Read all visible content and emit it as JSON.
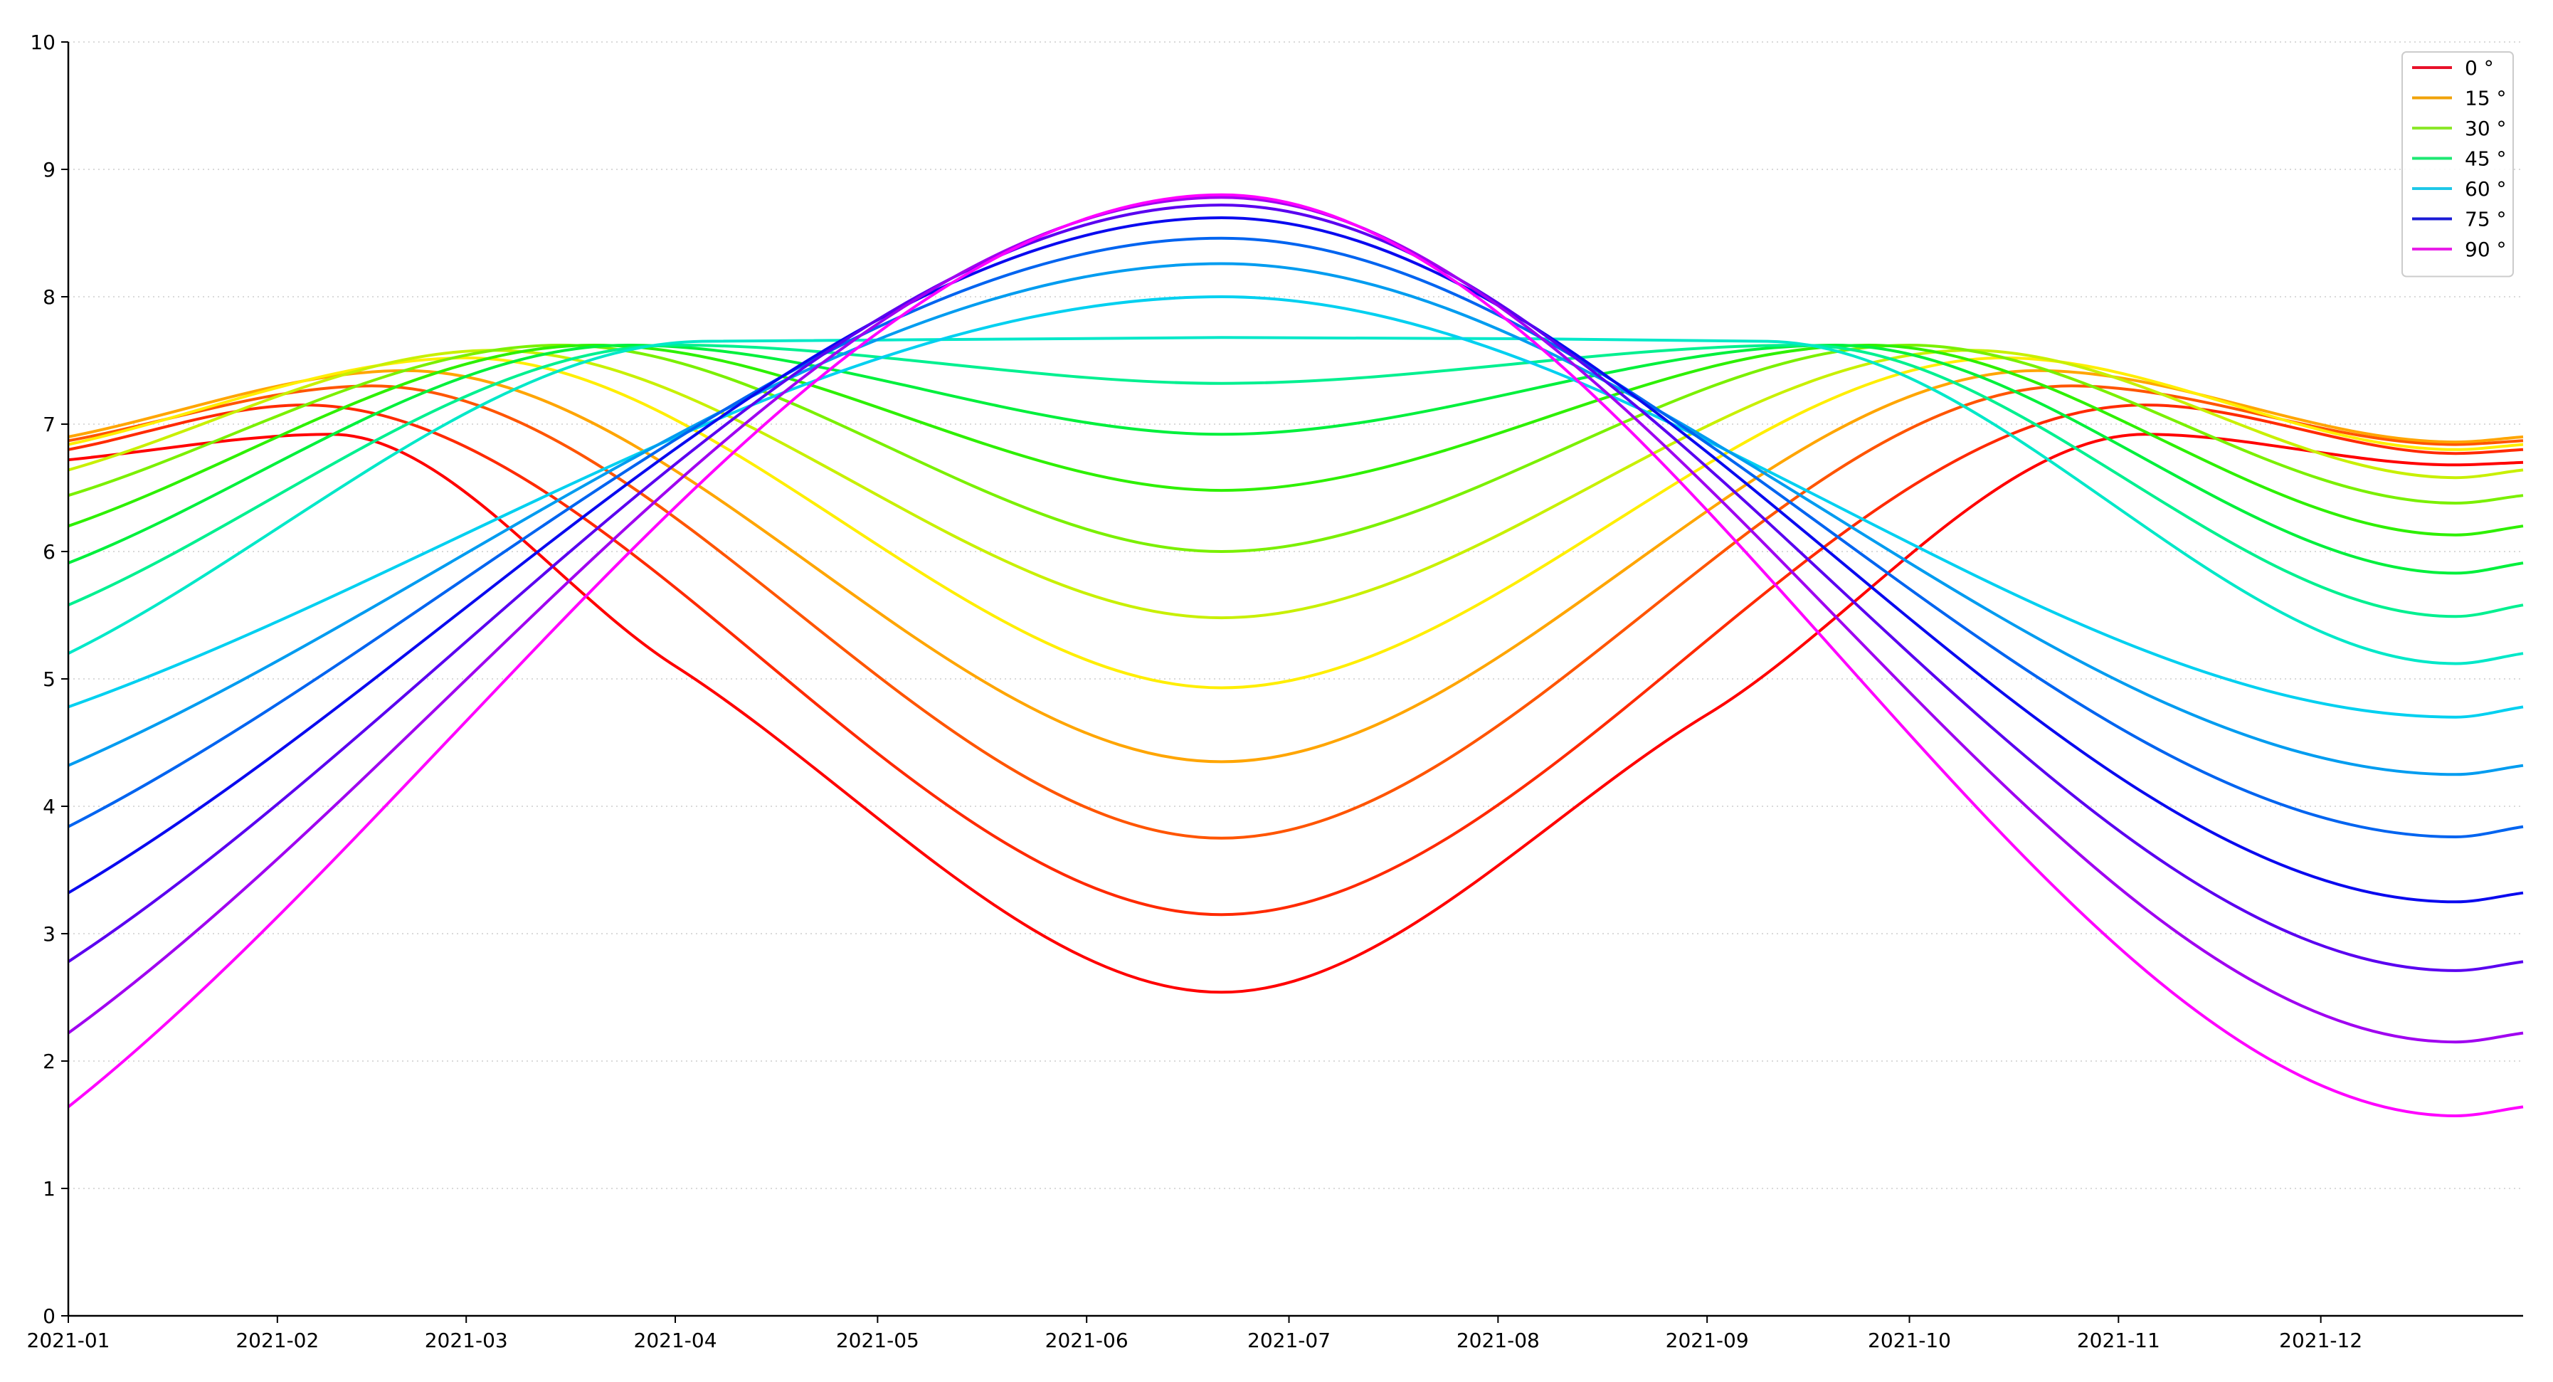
{
  "chart_data": {
    "type": "line",
    "title": "",
    "xlabel": "",
    "ylabel": "",
    "ylim": [
      0,
      10
    ],
    "xlim": [
      "2021-01-01",
      "2021-12-31"
    ],
    "x_tick_labels": [
      "2021-01",
      "2021-02",
      "2021-03",
      "2021-04",
      "2021-05",
      "2021-06",
      "2021-07",
      "2021-08",
      "2021-09",
      "2021-10",
      "2021-11",
      "2021-12"
    ],
    "y_ticks": [
      0,
      1,
      2,
      3,
      4,
      5,
      6,
      7,
      8,
      9,
      10
    ],
    "grid": "horizontal dotted",
    "legend_position": "top-right",
    "legend": [
      {
        "label": "0 °",
        "color": "#e8112a"
      },
      {
        "label": "15 °",
        "color": "#f0a30a"
      },
      {
        "label": "30 °",
        "color": "#8ce82a"
      },
      {
        "label": "45 °",
        "color": "#1ee873"
      },
      {
        "label": "60 °",
        "color": "#1ec8e8"
      },
      {
        "label": "75 °",
        "color": "#1a1ad6"
      },
      {
        "label": "90 °",
        "color": "#e81ee8"
      }
    ],
    "series": [
      {
        "color": "#ff0000",
        "points": [
          [
            "2021-01-01",
            6.72
          ],
          [
            "2021-02-09",
            6.92
          ],
          [
            "2021-04-01",
            5.1
          ],
          [
            "2021-06-21",
            2.54
          ],
          [
            "2021-09-01",
            4.72
          ],
          [
            "2021-11-05",
            6.92
          ],
          [
            "2021-12-21",
            6.68
          ],
          [
            "2021-12-31",
            6.7
          ]
        ]
      },
      {
        "color": "#ff2a00",
        "points": [
          [
            "2021-01-01",
            6.8
          ],
          [
            "2021-02-05",
            7.15
          ],
          [
            "2021-06-21",
            3.15
          ],
          [
            "2021-11-05",
            7.15
          ],
          [
            "2021-12-21",
            6.77
          ],
          [
            "2021-12-31",
            6.8
          ]
        ]
      },
      {
        "color": "#ff5500",
        "points": [
          [
            "2021-01-01",
            6.87
          ],
          [
            "2021-02-15",
            7.3
          ],
          [
            "2021-06-21",
            3.75
          ],
          [
            "2021-10-25",
            7.3
          ],
          [
            "2021-12-21",
            6.84
          ],
          [
            "2021-12-31",
            6.87
          ]
        ]
      },
      {
        "color": "#ffa500",
        "points": [
          [
            "2021-01-01",
            6.9
          ],
          [
            "2021-02-20",
            7.42
          ],
          [
            "2021-06-21",
            4.35
          ],
          [
            "2021-10-20",
            7.42
          ],
          [
            "2021-12-21",
            6.86
          ],
          [
            "2021-12-31",
            6.9
          ]
        ]
      },
      {
        "color": "#ffee00",
        "points": [
          [
            "2021-01-01",
            6.84
          ],
          [
            "2021-03-01",
            7.52
          ],
          [
            "2021-06-21",
            4.93
          ],
          [
            "2021-10-15",
            7.52
          ],
          [
            "2021-12-21",
            6.8
          ],
          [
            "2021-12-31",
            6.84
          ]
        ]
      },
      {
        "color": "#c8f000",
        "points": [
          [
            "2021-01-01",
            6.64
          ],
          [
            "2021-03-05",
            7.58
          ],
          [
            "2021-06-21",
            5.48
          ],
          [
            "2021-10-10",
            7.58
          ],
          [
            "2021-12-21",
            6.58
          ],
          [
            "2021-12-31",
            6.64
          ]
        ]
      },
      {
        "color": "#7af000",
        "points": [
          [
            "2021-01-01",
            6.44
          ],
          [
            "2021-03-15",
            7.62
          ],
          [
            "2021-06-21",
            6.0
          ],
          [
            "2021-10-01",
            7.62
          ],
          [
            "2021-12-21",
            6.38
          ],
          [
            "2021-12-31",
            6.44
          ]
        ]
      },
      {
        "color": "#2ef000",
        "points": [
          [
            "2021-01-01",
            6.2
          ],
          [
            "2021-03-20",
            7.62
          ],
          [
            "2021-06-21",
            6.48
          ],
          [
            "2021-09-25",
            7.62
          ],
          [
            "2021-12-21",
            6.13
          ],
          [
            "2021-12-31",
            6.2
          ]
        ]
      },
      {
        "color": "#00f03c",
        "points": [
          [
            "2021-01-01",
            5.91
          ],
          [
            "2021-03-25",
            7.62
          ],
          [
            "2021-06-21",
            6.92
          ],
          [
            "2021-09-20",
            7.62
          ],
          [
            "2021-12-21",
            5.83
          ],
          [
            "2021-12-31",
            5.91
          ]
        ]
      },
      {
        "color": "#00f090",
        "points": [
          [
            "2021-01-01",
            5.58
          ],
          [
            "2021-04-01",
            7.62
          ],
          [
            "2021-06-21",
            7.32
          ],
          [
            "2021-09-15",
            7.62
          ],
          [
            "2021-12-21",
            5.49
          ],
          [
            "2021-12-31",
            5.58
          ]
        ]
      },
      {
        "color": "#00e8c8",
        "points": [
          [
            "2021-01-01",
            5.2
          ],
          [
            "2021-04-05",
            7.65
          ],
          [
            "2021-06-21",
            7.68
          ],
          [
            "2021-09-10",
            7.65
          ],
          [
            "2021-12-21",
            5.12
          ],
          [
            "2021-12-31",
            5.2
          ]
        ]
      },
      {
        "color": "#00d0f0",
        "points": [
          [
            "2021-01-01",
            4.78
          ],
          [
            "2021-06-21",
            8.0
          ],
          [
            "2021-12-21",
            4.7
          ],
          [
            "2021-12-31",
            4.78
          ]
        ]
      },
      {
        "color": "#009cf0",
        "points": [
          [
            "2021-01-01",
            4.32
          ],
          [
            "2021-06-21",
            8.26
          ],
          [
            "2021-12-21",
            4.25
          ],
          [
            "2021-12-31",
            4.32
          ]
        ]
      },
      {
        "color": "#0064f0",
        "points": [
          [
            "2021-01-01",
            3.84
          ],
          [
            "2021-06-21",
            8.46
          ],
          [
            "2021-12-21",
            3.76
          ],
          [
            "2021-12-31",
            3.84
          ]
        ]
      },
      {
        "color": "#0a0aef",
        "points": [
          [
            "2021-01-01",
            3.32
          ],
          [
            "2021-06-21",
            8.62
          ],
          [
            "2021-12-21",
            3.25
          ],
          [
            "2021-12-31",
            3.32
          ]
        ]
      },
      {
        "color": "#5a00f0",
        "points": [
          [
            "2021-01-01",
            2.78
          ],
          [
            "2021-06-21",
            8.72
          ],
          [
            "2021-12-21",
            2.71
          ],
          [
            "2021-12-31",
            2.78
          ]
        ]
      },
      {
        "color": "#a000f0",
        "points": [
          [
            "2021-01-01",
            2.22
          ],
          [
            "2021-06-21",
            8.78
          ],
          [
            "2021-12-21",
            2.15
          ],
          [
            "2021-12-31",
            2.22
          ]
        ]
      },
      {
        "color": "#ff00ff",
        "points": [
          [
            "2021-01-01",
            1.64
          ],
          [
            "2021-06-21",
            8.8
          ],
          [
            "2021-12-21",
            1.57
          ],
          [
            "2021-12-31",
            1.64
          ]
        ]
      }
    ]
  }
}
